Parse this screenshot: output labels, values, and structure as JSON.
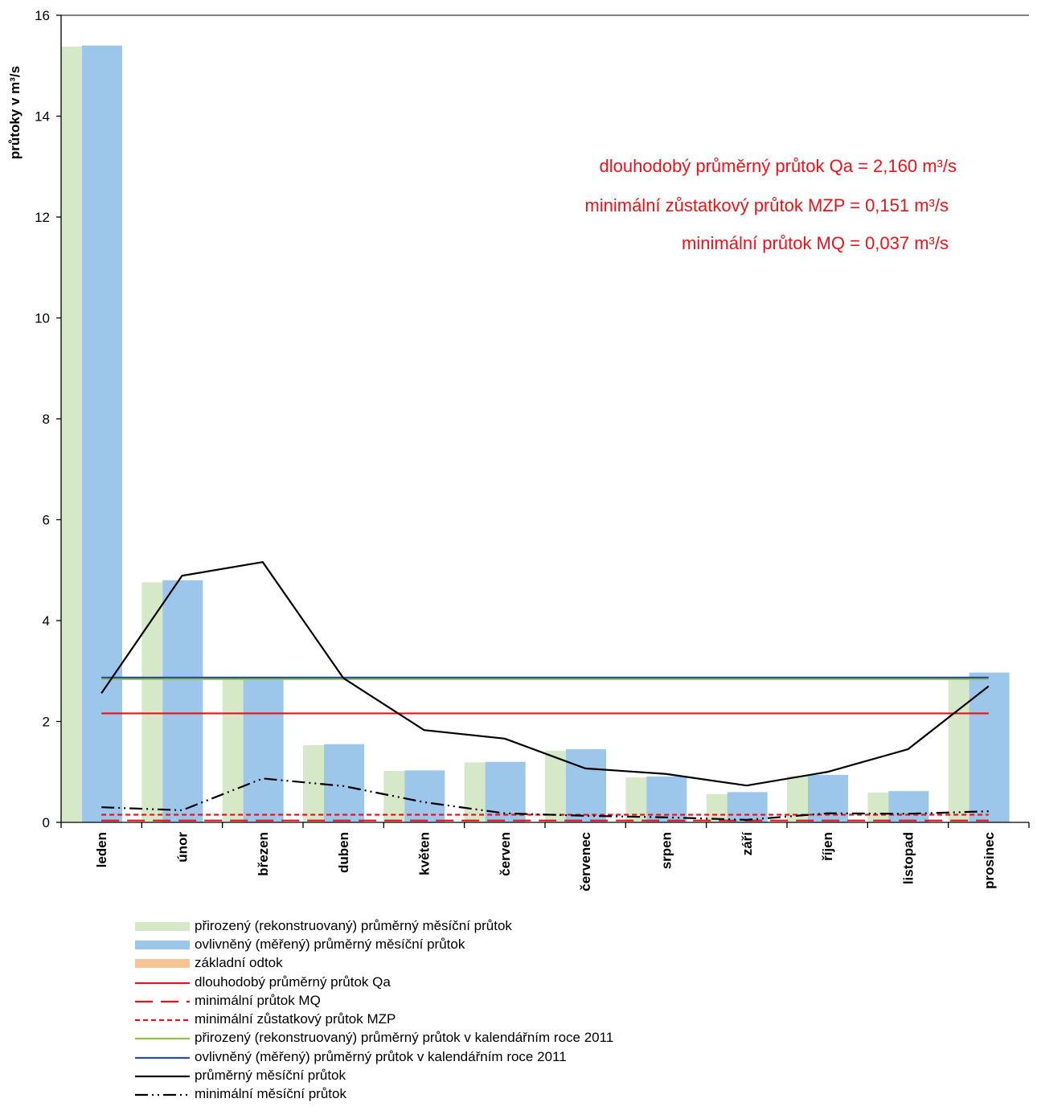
{
  "chart_data": {
    "type": "bar",
    "ylabel": "průtoky v m³/s",
    "ylim": [
      0,
      16
    ],
    "yticks": [
      0,
      2,
      4,
      6,
      8,
      10,
      12,
      14,
      16
    ],
    "categories": [
      "leden",
      "únor",
      "březen",
      "duben",
      "květen",
      "červen",
      "červenec",
      "srpen",
      "září",
      "říjen",
      "listopad",
      "prosinec"
    ],
    "bar_series": [
      {
        "name": "přirozený (rekonstruovaný) průměrný měsíční průtok",
        "color": "#d5e8c8",
        "values": [
          15.38,
          4.76,
          2.85,
          1.53,
          1.02,
          1.19,
          1.42,
          0.89,
          0.56,
          0.92,
          0.59,
          2.85
        ]
      },
      {
        "name": "ovlivněný (měřený) průměrný měsíční průtok",
        "color": "#9cc7ea",
        "values": [
          15.4,
          4.8,
          2.85,
          1.55,
          1.03,
          1.2,
          1.45,
          0.91,
          0.6,
          0.94,
          0.62,
          2.97
        ]
      },
      {
        "name": "základní odtok",
        "color": "#f7c495",
        "values": []
      }
    ],
    "line_series": [
      {
        "name": "průměrný měsíční průtok",
        "color": "#000000",
        "style": "solid",
        "values": [
          2.56,
          4.89,
          5.16,
          2.86,
          1.83,
          1.66,
          1.07,
          0.96,
          0.73,
          1.0,
          1.45,
          2.7
        ]
      },
      {
        "name": "minimální měsíční průtok",
        "color": "#000000",
        "style": "dashdotdot",
        "values": [
          0.3,
          0.24,
          0.87,
          0.72,
          0.4,
          0.18,
          0.13,
          0.1,
          0.05,
          0.18,
          0.17,
          0.22
        ]
      }
    ],
    "reference_lines": [
      {
        "name": "dlouhodobý průměrný průtok Qa",
        "color": "#e8141b",
        "style": "solid",
        "value": 2.16
      },
      {
        "name": "minimální průtok MQ",
        "color": "#e8141b",
        "style": "longdash",
        "value": 0.037
      },
      {
        "name": "minimální zůstatkový průtok MZP",
        "color": "#e8141b",
        "style": "shortdash",
        "value": 0.151
      },
      {
        "name": "přirozený (rekonstruovaný) průměrný průtok v kalendářním roce 2011",
        "color": "#8cc63f",
        "style": "solid",
        "value": 2.84
      },
      {
        "name": "ovlivněný (měřený) průměrný průtok v kalendářním roce 2011",
        "color": "#2e4d9c",
        "style": "solid",
        "value": 2.87
      }
    ],
    "annotations": [
      "dlouhodobý průměrný  průtok Qa = 2,160  m³/s",
      "minimální zůstatkový průtok MZP = 0,151  m³/s",
      "minimální průtok MQ = 0,037  m³/s"
    ],
    "legend": [
      "přirozený (rekonstruovaný) průměrný měsíční průtok",
      "ovlivněný (měřený) průměrný měsíční průtok",
      "základní odtok",
      "dlouhodobý průměrný průtok Qa",
      "minimální průtok MQ",
      "minimální zůstatkový průtok MZP",
      "přirozený (rekonstruovaný) průměrný průtok v kalendářním roce 2011",
      "ovlivněný (měřený) průměrný průtok v kalendářním roce 2011",
      "průměrný měsíční průtok",
      "minimální měsíční průtok"
    ],
    "legend_position": "bottom"
  }
}
